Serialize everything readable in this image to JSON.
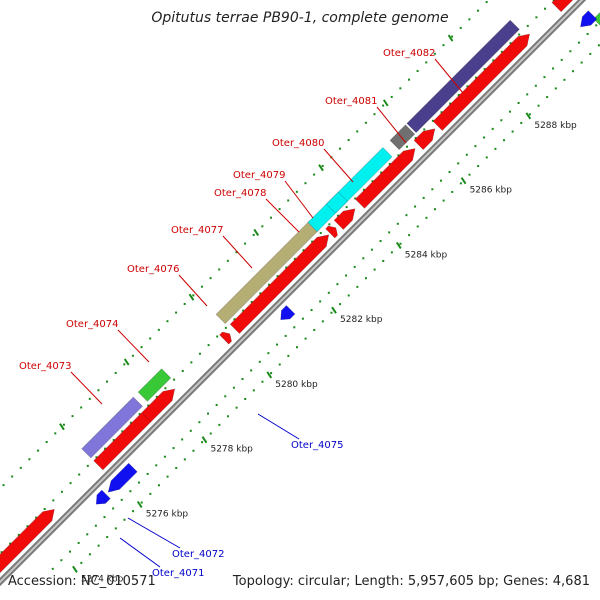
{
  "title": "Opitutus terrae PB90-1, complete genome",
  "footer": {
    "accession": "Accession: NC_010571",
    "summary": "Topology: circular; Length: 5,957,605 bp; Genes: 4,681"
  },
  "colors": {
    "forward_cds": "#f00a0a",
    "reverse_cds": "#1010f0",
    "backbone": "#9a9a9a",
    "tick_major": "#1a8a1a",
    "label_forward": "#cc0000",
    "label_reverse": "#0000cc"
  },
  "ticks": [
    "5274 kbp",
    "5276 kbp",
    "5278 kbp",
    "5280 kbp",
    "5282 kbp",
    "5284 kbp",
    "5286 kbp",
    "5288 kbp"
  ],
  "gene_labels_forward": [
    "Oter_4073",
    "Oter_4074",
    "Oter_4076",
    "Oter_4077",
    "Oter_4078",
    "Oter_4079",
    "Oter_4080",
    "Oter_4081",
    "Oter_4082"
  ],
  "gene_labels_reverse": [
    "Oter_4071",
    "Oter_4072",
    "Oter_4075"
  ],
  "features": [
    {
      "color": "#8075d8"
    },
    {
      "color": "#38c838"
    },
    {
      "color": "#b4ad74"
    },
    {
      "color": "#00f0f0"
    },
    {
      "color": "#707070"
    },
    {
      "color": "#4a3f8c"
    },
    {
      "color": "#4a84c0"
    },
    {
      "color": "#38c838"
    }
  ]
}
